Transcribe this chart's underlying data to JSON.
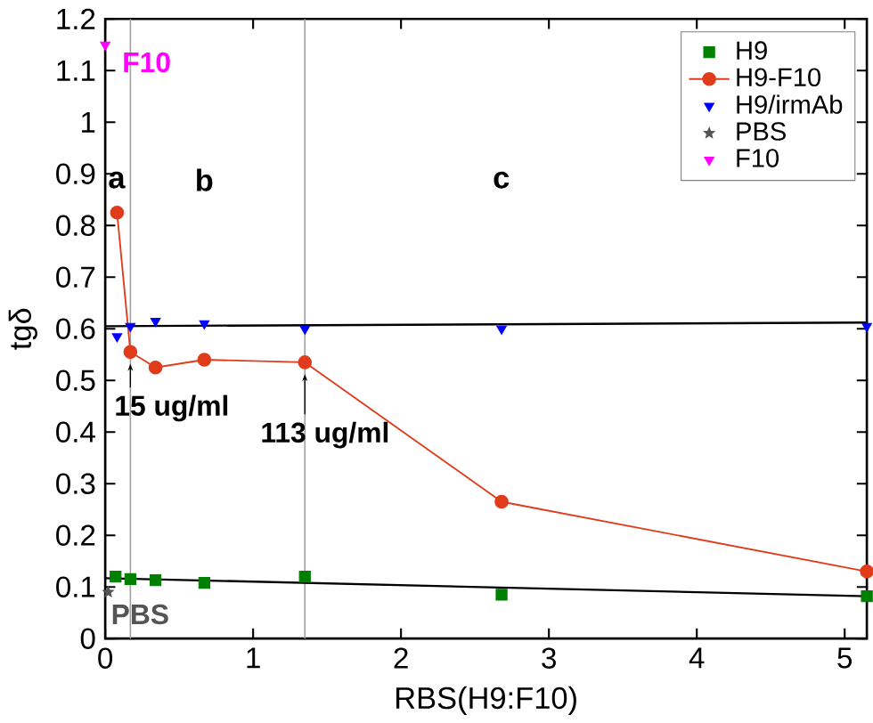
{
  "chart_data": {
    "type": "scatter",
    "xlabel": "RBS(H9:F10)",
    "ylabel": "tgδ",
    "xlim": [
      0,
      5.15
    ],
    "ylim": [
      0,
      1.2
    ],
    "xticks": [
      0,
      1,
      2,
      3,
      4,
      5
    ],
    "yticks": [
      0,
      0.1,
      0.2,
      0.3,
      0.4,
      0.5,
      0.6,
      0.7,
      0.8,
      0.9,
      1,
      1.1,
      1.2
    ],
    "grid": false,
    "legend": "top right",
    "series": [
      {
        "name": "H9",
        "marker": "square",
        "color": "#008000",
        "x": [
          0.07,
          0.17,
          0.34,
          0.67,
          1.35,
          2.68,
          5.15
        ],
        "values": [
          0.12,
          0.115,
          0.113,
          0.108,
          0.12,
          0.085,
          0.082
        ]
      },
      {
        "name": "H9-F10",
        "type": "line",
        "marker": "circle",
        "color": "#e03c1c",
        "x": [
          0.08,
          0.17,
          0.34,
          0.67,
          1.35,
          2.68,
          5.15
        ],
        "values": [
          0.825,
          0.555,
          0.525,
          0.54,
          0.535,
          0.265,
          0.13
        ]
      },
      {
        "name": "H9/irmAb",
        "marker": "triangle",
        "color": "#0000ff",
        "x": [
          0.08,
          0.17,
          0.34,
          0.67,
          1.35,
          2.68,
          5.15
        ],
        "values": [
          0.585,
          0.605,
          0.615,
          0.61,
          0.6,
          0.6,
          0.605
        ]
      },
      {
        "name": "PBS",
        "marker": "star",
        "color": "#555555",
        "x": [
          0.02
        ],
        "values": [
          0.09
        ]
      },
      {
        "name": "F10",
        "marker": "triangle",
        "color": "#ff00ff",
        "x": [
          0
        ],
        "values": [
          1.15
        ]
      },
      {
        "type": "line",
        "color": "#000000",
        "x": [
          0,
          5.15
        ],
        "values": [
          0.605,
          0.612
        ]
      },
      {
        "type": "line",
        "color": "#000000",
        "x": [
          0,
          5.15
        ],
        "values": [
          0.117,
          0.082
        ]
      }
    ],
    "ref_lines": [
      {
        "axis": "x",
        "value": 0.17,
        "color": "#a0a0a0"
      },
      {
        "axis": "x",
        "value": 1.35,
        "color": "#a0a0a0"
      }
    ],
    "annotations": [
      "a",
      "b",
      "c",
      {
        "text": "15 ug/ml",
        "x": 0.17,
        "y": 0.555
      },
      {
        "text": "113 ug/ml",
        "x": 1.35,
        "y": 0.535
      },
      {
        "text": "PBS",
        "x": 0.02,
        "y": 0.09
      },
      {
        "text": "F10",
        "x": 0,
        "y": 1.15
      }
    ]
  }
}
